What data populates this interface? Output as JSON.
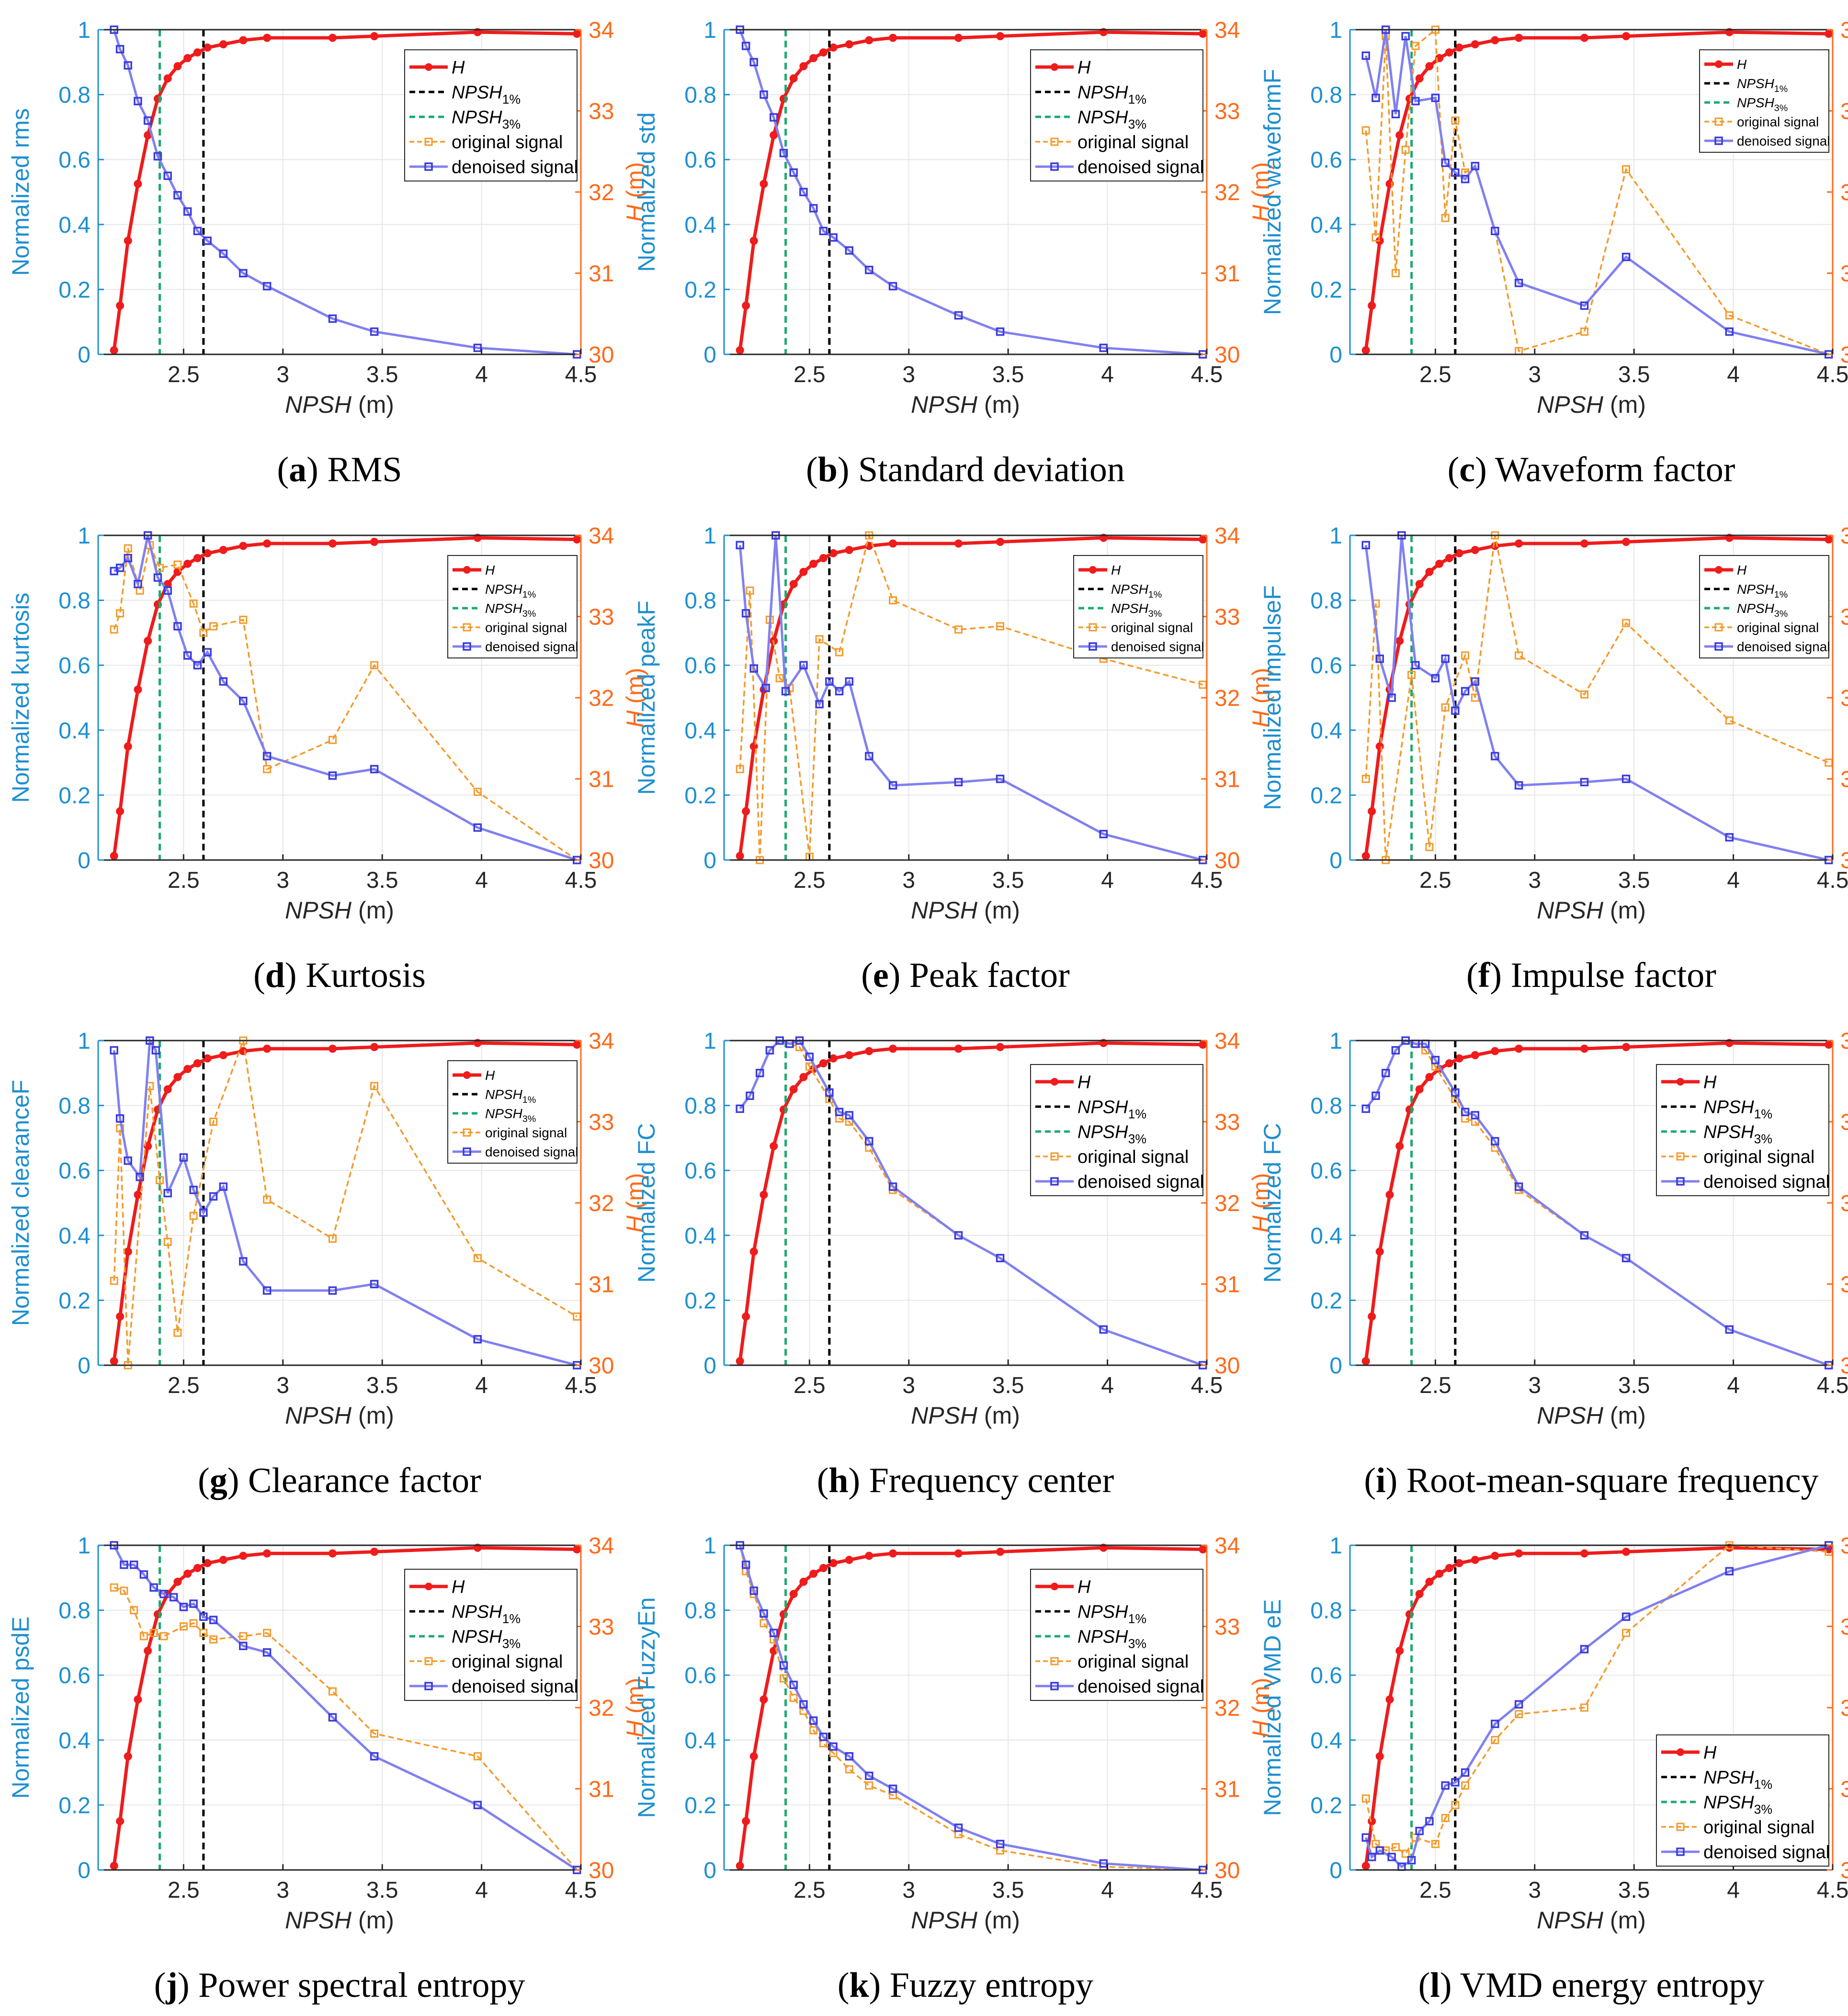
{
  "chart_data": [
    {
      "panel": "a",
      "caption": "RMS",
      "ylabel": "Normalized rms",
      "denoised": [
        1.0,
        0.94,
        0.89,
        0.78,
        0.72,
        0.61,
        0.55,
        0.49,
        0.44,
        0.38,
        0.35,
        0.31,
        0.25,
        0.21,
        0.11,
        0.07,
        0.02,
        0.0
      ],
      "original": [
        1.0,
        0.94,
        0.89,
        0.78,
        0.72,
        0.61,
        0.55,
        0.49,
        0.44,
        0.38,
        0.35,
        0.31,
        0.25,
        0.21,
        0.11,
        0.07,
        0.02,
        0.0
      ],
      "legend_pos": "upper-right"
    },
    {
      "panel": "b",
      "caption": "Standard deviation",
      "ylabel": "Normalized std",
      "denoised": [
        1.0,
        0.95,
        0.9,
        0.8,
        0.73,
        0.62,
        0.56,
        0.5,
        0.45,
        0.38,
        0.36,
        0.32,
        0.26,
        0.21,
        0.12,
        0.07,
        0.02,
        0.0
      ],
      "original": [
        1.0,
        0.95,
        0.9,
        0.8,
        0.73,
        0.62,
        0.56,
        0.5,
        0.45,
        0.38,
        0.36,
        0.32,
        0.26,
        0.21,
        0.12,
        0.07,
        0.02,
        0.0
      ],
      "legend_pos": "upper-right"
    },
    {
      "panel": "c",
      "caption": "Waveform factor",
      "ylabel": "Normalized waveformF",
      "denoised": [
        0.92,
        0.79,
        1.0,
        0.74,
        0.98,
        0.78,
        0.79,
        0.59,
        0.56,
        0.54,
        0.58,
        0.38,
        0.22,
        0.15,
        0.3,
        0.07,
        0.0
      ],
      "original": [
        0.69,
        0.36,
        0.98,
        0.25,
        0.63,
        0.95,
        1.0,
        0.42,
        0.72,
        0.56,
        0.58,
        0.38,
        0.01,
        0.07,
        0.57,
        0.12,
        0.0
      ],
      "x_override": [
        2.15,
        2.2,
        2.25,
        2.3,
        2.35,
        2.4,
        2.5,
        2.55,
        2.6,
        2.65,
        2.7,
        2.8,
        2.92,
        3.25,
        3.46,
        3.98,
        4.48
      ],
      "legend_pos": "upper-right",
      "legend_small": true
    },
    {
      "panel": "d",
      "caption": "Kurtosis",
      "ylabel": "Normalized kurtosis",
      "denoised": [
        0.89,
        0.9,
        0.93,
        0.85,
        1.0,
        0.87,
        0.83,
        0.72,
        0.63,
        0.6,
        0.64,
        0.55,
        0.49,
        0.32,
        0.26,
        0.28,
        0.1,
        0.0
      ],
      "original": [
        0.71,
        0.76,
        0.96,
        0.83,
        0.97,
        0.9,
        0.91,
        0.79,
        0.7,
        0.72,
        0.74,
        0.28,
        0.37,
        0.6,
        0.21,
        0.0
      ],
      "x_override_orig": [
        2.15,
        2.18,
        2.22,
        2.28,
        2.33,
        2.38,
        2.47,
        2.55,
        2.6,
        2.65,
        2.8,
        2.92,
        3.25,
        3.46,
        3.98,
        4.48
      ],
      "legend_pos": "upper-right",
      "legend_small": true
    },
    {
      "panel": "e",
      "caption": "Peak factor",
      "ylabel": "Normalized peakF",
      "denoised": [
        0.97,
        0.76,
        0.59,
        0.53,
        1.0,
        0.52,
        0.6,
        0.48,
        0.55,
        0.52,
        0.55,
        0.32,
        0.23,
        0.24,
        0.25,
        0.08,
        0.0
      ],
      "original": [
        0.28,
        0.83,
        0.0,
        0.74,
        0.56,
        0.53,
        0.01,
        0.68,
        0.64,
        1.0,
        0.8,
        0.71,
        0.72,
        0.62,
        0.54
      ],
      "x_override": [
        2.15,
        2.18,
        2.22,
        2.28,
        2.33,
        2.38,
        2.47,
        2.55,
        2.6,
        2.65,
        2.7,
        2.8,
        2.92,
        3.25,
        3.46,
        3.98,
        4.48
      ],
      "x_override_orig": [
        2.15,
        2.2,
        2.25,
        2.3,
        2.35,
        2.4,
        2.5,
        2.55,
        2.65,
        2.8,
        2.92,
        3.25,
        3.46,
        3.98,
        4.48
      ],
      "legend_pos": "upper-right",
      "legend_small": true
    },
    {
      "panel": "f",
      "caption": "Impulse factor",
      "ylabel": "Normalized impulseF",
      "denoised": [
        0.97,
        0.62,
        0.5,
        1.0,
        0.6,
        0.56,
        0.62,
        0.46,
        0.52,
        0.55,
        0.32,
        0.23,
        0.24,
        0.25,
        0.07,
        0.0
      ],
      "original": [
        0.25,
        0.79,
        0.0,
        0.57,
        0.04,
        0.47,
        0.63,
        0.5,
        1.0,
        0.63,
        0.51,
        0.73,
        0.43,
        0.3
      ],
      "x_override": [
        2.15,
        2.22,
        2.28,
        2.33,
        2.4,
        2.5,
        2.55,
        2.6,
        2.65,
        2.7,
        2.8,
        2.92,
        3.25,
        3.46,
        3.98,
        4.48
      ],
      "x_override_orig": [
        2.15,
        2.2,
        2.25,
        2.38,
        2.47,
        2.55,
        2.65,
        2.7,
        2.8,
        2.92,
        3.25,
        3.46,
        3.98,
        4.48
      ],
      "legend_pos": "upper-right",
      "legend_small": true
    },
    {
      "panel": "g",
      "caption": "Clearance factor",
      "ylabel": "Normalized clearanceF",
      "denoised": [
        0.97,
        0.76,
        0.63,
        0.58,
        1.0,
        0.97,
        0.53,
        0.64,
        0.54,
        0.47,
        0.52,
        0.55,
        0.32,
        0.23,
        0.23,
        0.25,
        0.08,
        0.0
      ],
      "original": [
        0.26,
        0.73,
        0.0,
        0.86,
        0.57,
        0.38,
        0.1,
        0.46,
        0.75,
        1.0,
        0.51,
        0.39,
        0.86,
        0.33,
        0.15
      ],
      "x_override": [
        2.15,
        2.18,
        2.22,
        2.28,
        2.33,
        2.36,
        2.42,
        2.5,
        2.55,
        2.6,
        2.65,
        2.7,
        2.8,
        2.92,
        3.25,
        3.46,
        3.98,
        4.48
      ],
      "x_override_orig": [
        2.15,
        2.18,
        2.22,
        2.33,
        2.38,
        2.42,
        2.47,
        2.55,
        2.65,
        2.8,
        2.92,
        3.25,
        3.46,
        3.98,
        4.48
      ],
      "legend_pos": "upper-right",
      "legend_small": true
    },
    {
      "panel": "h",
      "caption": "Frequency center",
      "ylabel": "Normalized FC",
      "denoised": [
        0.79,
        0.83,
        0.9,
        0.97,
        1.0,
        0.99,
        1.0,
        0.95,
        0.84,
        0.78,
        0.77,
        0.69,
        0.55,
        0.4,
        0.33,
        0.11,
        0.0
      ],
      "original": [
        0.79,
        0.83,
        0.9,
        0.97,
        1.0,
        0.99,
        0.98,
        0.92,
        0.82,
        0.76,
        0.75,
        0.67,
        0.54,
        0.4,
        0.33,
        0.11,
        0.0
      ],
      "x_override": [
        2.15,
        2.2,
        2.25,
        2.3,
        2.35,
        2.4,
        2.45,
        2.5,
        2.6,
        2.65,
        2.7,
        2.8,
        2.92,
        3.25,
        3.46,
        3.98,
        4.48
      ],
      "legend_pos": "right"
    },
    {
      "panel": "i",
      "caption": "Root-mean-square frequency",
      "ylabel": "Normalized FC",
      "denoised": [
        0.79,
        0.83,
        0.9,
        0.97,
        1.0,
        0.99,
        0.99,
        0.94,
        0.84,
        0.78,
        0.77,
        0.69,
        0.55,
        0.4,
        0.33,
        0.11,
        0.0
      ],
      "original": [
        0.79,
        0.83,
        0.9,
        0.97,
        1.0,
        0.99,
        0.97,
        0.92,
        0.82,
        0.76,
        0.75,
        0.67,
        0.54,
        0.4,
        0.33,
        0.11,
        0.0
      ],
      "x_override": [
        2.15,
        2.2,
        2.25,
        2.3,
        2.35,
        2.4,
        2.45,
        2.5,
        2.6,
        2.65,
        2.7,
        2.8,
        2.92,
        3.25,
        3.46,
        3.98,
        4.48
      ],
      "legend_pos": "right"
    },
    {
      "panel": "j",
      "caption": "Power spectral entropy",
      "ylabel": "Normalized psdE",
      "denoised": [
        1.0,
        0.94,
        0.94,
        0.91,
        0.87,
        0.85,
        0.84,
        0.81,
        0.82,
        0.78,
        0.77,
        0.69,
        0.67,
        0.47,
        0.35,
        0.2,
        0.0
      ],
      "original": [
        0.87,
        0.86,
        0.8,
        0.72,
        0.73,
        0.72,
        0.75,
        0.76,
        0.73,
        0.71,
        0.72,
        0.73,
        0.55,
        0.42,
        0.35,
        0.0
      ],
      "x_override": [
        2.15,
        2.2,
        2.25,
        2.3,
        2.35,
        2.4,
        2.45,
        2.5,
        2.55,
        2.6,
        2.65,
        2.8,
        2.92,
        3.25,
        3.46,
        3.98,
        4.48
      ],
      "x_override_orig": [
        2.15,
        2.2,
        2.25,
        2.3,
        2.35,
        2.4,
        2.5,
        2.55,
        2.6,
        2.65,
        2.8,
        2.92,
        3.25,
        3.46,
        3.98,
        4.48
      ],
      "legend_pos": "right"
    },
    {
      "panel": "k",
      "caption": "Fuzzy entropy",
      "ylabel": "Normalized FuzzyEn",
      "denoised": [
        1.0,
        0.94,
        0.86,
        0.79,
        0.73,
        0.63,
        0.57,
        0.51,
        0.46,
        0.41,
        0.38,
        0.35,
        0.29,
        0.25,
        0.13,
        0.08,
        0.02,
        0.0
      ],
      "original": [
        1.0,
        0.92,
        0.85,
        0.76,
        0.71,
        0.59,
        0.53,
        0.49,
        0.43,
        0.39,
        0.36,
        0.31,
        0.26,
        0.23,
        0.11,
        0.06,
        0.01,
        0.0
      ],
      "legend_pos": "right"
    },
    {
      "panel": "l",
      "caption": "VMD energy entropy",
      "ylabel": "Normalized VMD eE",
      "denoised": [
        0.1,
        0.04,
        0.06,
        0.04,
        0.01,
        0.03,
        0.12,
        0.15,
        0.26,
        0.27,
        0.3,
        0.45,
        0.51,
        0.68,
        0.78,
        0.92,
        1.0
      ],
      "original": [
        0.22,
        0.08,
        0.06,
        0.07,
        0.05,
        0.1,
        0.08,
        0.16,
        0.2,
        0.26,
        0.4,
        0.48,
        0.5,
        0.73,
        1.0,
        0.98
      ],
      "x_override": [
        2.15,
        2.18,
        2.22,
        2.28,
        2.33,
        2.38,
        2.42,
        2.47,
        2.55,
        2.6,
        2.65,
        2.8,
        2.92,
        3.25,
        3.46,
        3.98,
        4.48
      ],
      "x_override_orig": [
        2.15,
        2.2,
        2.25,
        2.3,
        2.35,
        2.4,
        2.5,
        2.55,
        2.6,
        2.65,
        2.8,
        2.92,
        3.25,
        3.46,
        3.98,
        4.48
      ],
      "legend_pos": "lower-right"
    }
  ],
  "shared": {
    "type": "line",
    "x": [
      2.15,
      2.18,
      2.22,
      2.27,
      2.32,
      2.37,
      2.42,
      2.47,
      2.52,
      2.57,
      2.62,
      2.7,
      2.8,
      2.92,
      3.25,
      3.46,
      3.98,
      4.48
    ],
    "H_x": [
      2.15,
      2.18,
      2.22,
      2.27,
      2.32,
      2.37,
      2.42,
      2.47,
      2.52,
      2.57,
      2.62,
      2.7,
      2.8,
      2.92,
      3.25,
      3.46,
      3.98,
      4.48
    ],
    "H_values": [
      30.05,
      30.6,
      31.4,
      32.1,
      32.7,
      33.15,
      33.4,
      33.55,
      33.65,
      33.72,
      33.78,
      33.82,
      33.87,
      33.9,
      33.9,
      33.92,
      33.97,
      33.95
    ],
    "NPSH1": 2.6,
    "NPSH3": 2.38,
    "xlim": [
      2.07,
      4.5
    ],
    "xticks": [
      "2.5",
      "3",
      "3.5",
      "4",
      "4.5"
    ],
    "xtick_values": [
      2.5,
      3.0,
      3.5,
      4.0,
      4.5
    ],
    "ylim_left": [
      0,
      1
    ],
    "yticks_left": [
      "0",
      "0.2",
      "0.4",
      "0.6",
      "0.8",
      "1"
    ],
    "ylim_right": [
      30,
      34
    ],
    "yticks_right": [
      "30",
      "31",
      "32",
      "33",
      "34"
    ],
    "xlabel_main": "NPSH",
    "xlabel_unit": " (m)",
    "ylabel_right_main": "H",
    "ylabel_right_unit": " (m)",
    "legend": {
      "H": "H",
      "npsh_main": "NPSH",
      "npsh1_sub": "1%",
      "npsh3_sub": "3%",
      "original": "original signal",
      "denoised": "denoised signal"
    },
    "colors": {
      "H": "#ee1c1c",
      "npsh1": "#000000",
      "npsh3": "#1aaa6e",
      "original": "#f39a2b",
      "denoised": "#3b3bdd",
      "denoised_line": "#8080f0",
      "left_axis": "#1d8fd0",
      "right_axis": "#ff6a1a",
      "grid": "#e6e6e6"
    }
  }
}
